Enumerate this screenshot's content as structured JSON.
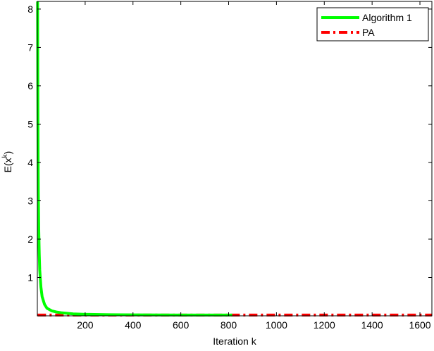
{
  "chart_data": {
    "type": "line",
    "title": "",
    "xlabel": "Iteration k",
    "ylabel_base": "E(x",
    "ylabel_sup": "k",
    "ylabel_close": ")",
    "xlim": [
      0,
      1650
    ],
    "ylim": [
      0,
      8.2
    ],
    "x_ticks": [
      "200",
      "400",
      "600",
      "800",
      "1000",
      "1200",
      "1400",
      "1600"
    ],
    "x_tick_values": [
      200,
      400,
      600,
      800,
      1000,
      1200,
      1400,
      1600
    ],
    "y_ticks": [
      "1",
      "2",
      "3",
      "4",
      "5",
      "6",
      "7",
      "8"
    ],
    "y_tick_values": [
      1,
      2,
      3,
      4,
      5,
      6,
      7,
      8
    ],
    "grid": false,
    "legend_position": "top-right",
    "series": [
      {
        "name": "Algorithm 1",
        "color": "#00ff00",
        "style": "solid",
        "x": [
          1,
          2,
          3,
          4,
          6,
          8,
          10,
          15,
          20,
          30,
          40,
          60,
          80,
          100,
          150,
          200,
          300,
          400,
          500,
          600,
          700,
          815
        ],
        "y": [
          8.2,
          6.0,
          4.3,
          3.2,
          2.2,
          1.6,
          1.2,
          0.75,
          0.5,
          0.3,
          0.2,
          0.13,
          0.1,
          0.08,
          0.05,
          0.04,
          0.03,
          0.025,
          0.022,
          0.02,
          0.02,
          0.02
        ]
      },
      {
        "name": "PA",
        "color": "#ff0000",
        "style": "dash-dot",
        "x": [
          1,
          200,
          400,
          600,
          800,
          1000,
          1200,
          1400,
          1650
        ],
        "y": [
          0.02,
          0.02,
          0.02,
          0.02,
          0.02,
          0.02,
          0.02,
          0.02,
          0.02
        ]
      }
    ]
  }
}
